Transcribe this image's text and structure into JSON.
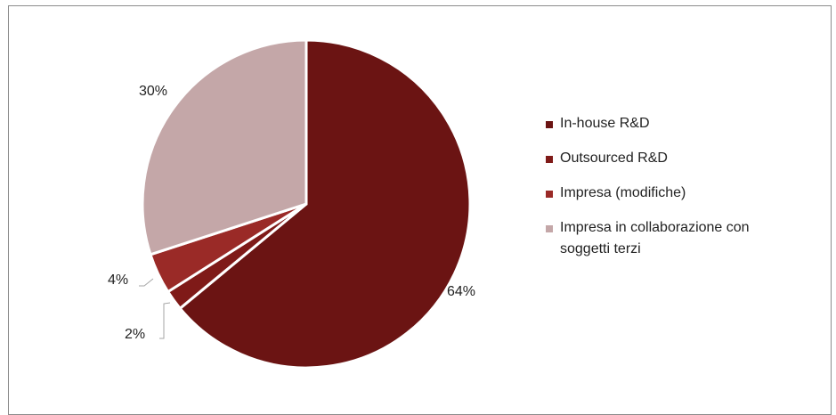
{
  "chart_data": {
    "type": "pie",
    "title": "",
    "slices": [
      {
        "name": "In-house R&D",
        "value": 64,
        "label": "64%",
        "color": "#6b1413"
      },
      {
        "name": "Outsourced R&D",
        "value": 2,
        "label": "2%",
        "color": "#7f1a18"
      },
      {
        "name": "Impresa (modifiche)",
        "value": 4,
        "label": "4%",
        "color": "#9a2a27"
      },
      {
        "name": "Impresa in collaborazione con soggetti terzi",
        "value": 30,
        "label": "30%",
        "color": "#c4a7a8"
      }
    ],
    "legend_position": "right",
    "start_angle": "top",
    "direction": "clockwise"
  },
  "legend": {
    "items": [
      {
        "text": "In-house R&D",
        "color": "#6b1413"
      },
      {
        "text": "Outsourced R&D",
        "color": "#7f1a18"
      },
      {
        "text": "Impresa (modifiche)",
        "color": "#9a2a27"
      },
      {
        "text": "Impresa in collaborazione con\nsoggetti terzi",
        "color": "#c4a7a8"
      }
    ]
  }
}
